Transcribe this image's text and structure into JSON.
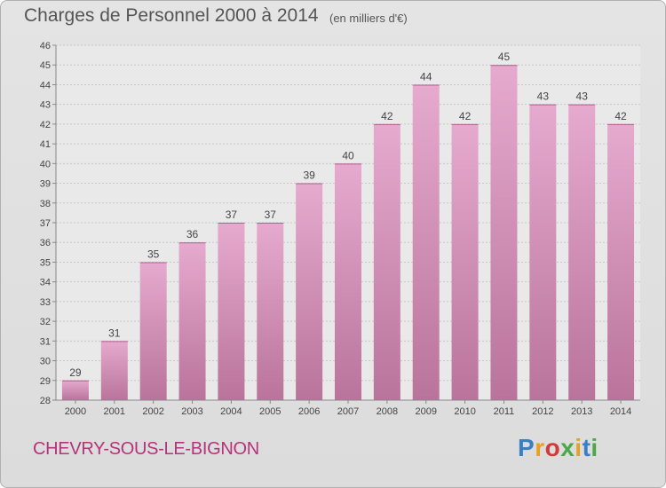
{
  "header": {
    "title": "Charges de Personnel 2000 à 2014",
    "subtitle": "(en milliers d'€)"
  },
  "footer": {
    "commune": "CHEVRY-SOUS-LE-BIGNON",
    "logo": "Proxiti",
    "logo_colors": [
      "#3a7fc4",
      "#e8a020",
      "#d23a3a",
      "#4aa84a",
      "#e8a020",
      "#3a7fc4",
      "#4aa84a"
    ]
  },
  "colors": {
    "bar_top": "#e6aacf",
    "bar_bottom": "#b9749b",
    "axis_text": "#444444",
    "grid": "#c8c8c8",
    "plot_bg": "#e9e9e9"
  },
  "chart_data": {
    "type": "bar",
    "categories": [
      "2000",
      "2001",
      "2002",
      "2003",
      "2004",
      "2005",
      "2006",
      "2007",
      "2008",
      "2009",
      "2010",
      "2011",
      "2012",
      "2013",
      "2014"
    ],
    "values": [
      29,
      31,
      35,
      36,
      37,
      37,
      39,
      40,
      42,
      44,
      42,
      45,
      43,
      43,
      42
    ],
    "ylim": [
      28,
      46
    ],
    "ytick_step": 1,
    "grid": true
  }
}
